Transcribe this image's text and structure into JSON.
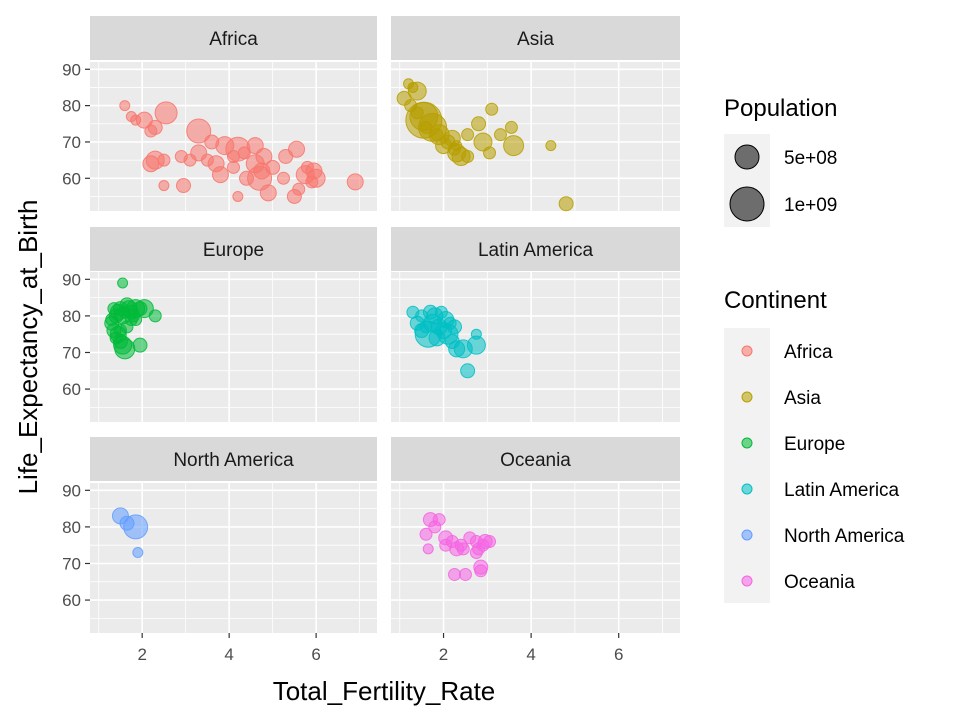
{
  "chart_data": {
    "type": "scatter",
    "xlabel": "Total_Fertility_Rate",
    "ylabel": "Life_Expectancy_at_Birth",
    "xlim": [
      0.8,
      7.4
    ],
    "ylim": [
      51,
      92
    ],
    "x_ticks": [
      2,
      4,
      6
    ],
    "y_ticks": [
      60,
      70,
      80,
      90
    ],
    "x_tick_labels": [
      "2",
      "4",
      "6"
    ],
    "y_tick_labels": [
      "60",
      "70",
      "80",
      "90"
    ],
    "grid": true,
    "facets": [
      "Africa",
      "Asia",
      "Europe",
      "Latin America",
      "North America",
      "Oceania"
    ],
    "size_legend": {
      "title": "Population",
      "entries": [
        {
          "label": "5e+08",
          "value": 500000000
        },
        {
          "label": "1e+09",
          "value": 1000000000
        }
      ]
    },
    "color_legend": {
      "title": "Continent",
      "entries": [
        {
          "label": "Africa",
          "color": "#F8766D"
        },
        {
          "label": "Asia",
          "color": "#B79F00"
        },
        {
          "label": "Europe",
          "color": "#00BA38"
        },
        {
          "label": "Latin America",
          "color": "#00BFC4"
        },
        {
          "label": "North America",
          "color": "#619CFF"
        },
        {
          "label": "Oceania",
          "color": "#F564E3"
        }
      ]
    },
    "series": [
      {
        "name": "Africa",
        "color": "#F8766D",
        "points": [
          [
            1.6,
            80,
            5
          ],
          [
            1.75,
            77,
            5
          ],
          [
            1.85,
            76,
            5
          ],
          [
            2.05,
            76,
            8
          ],
          [
            2.2,
            73,
            6
          ],
          [
            2.3,
            74,
            7
          ],
          [
            2.55,
            78,
            11
          ],
          [
            2.3,
            65,
            9
          ],
          [
            2.2,
            64,
            8
          ],
          [
            2.5,
            65,
            6
          ],
          [
            2.5,
            58,
            5
          ],
          [
            2.95,
            58,
            7
          ],
          [
            2.9,
            66,
            6
          ],
          [
            3.1,
            65,
            6
          ],
          [
            3.3,
            73,
            12
          ],
          [
            3.3,
            67,
            8
          ],
          [
            3.6,
            70,
            7
          ],
          [
            3.5,
            65,
            6
          ],
          [
            3.7,
            64,
            8
          ],
          [
            3.8,
            61,
            8
          ],
          [
            3.9,
            69,
            9
          ],
          [
            4.1,
            66,
            6
          ],
          [
            4.1,
            63,
            6
          ],
          [
            4.2,
            68,
            12
          ],
          [
            4.35,
            67,
            6
          ],
          [
            4.4,
            60,
            7
          ],
          [
            4.2,
            55,
            5
          ],
          [
            4.6,
            69,
            8
          ],
          [
            4.6,
            64,
            9
          ],
          [
            4.7,
            60,
            12
          ],
          [
            4.75,
            62,
            8
          ],
          [
            4.8,
            66,
            8
          ],
          [
            4.9,
            56,
            8
          ],
          [
            5.0,
            63,
            7
          ],
          [
            5.3,
            66,
            7
          ],
          [
            5.25,
            60,
            6
          ],
          [
            5.55,
            68,
            8
          ],
          [
            5.5,
            55,
            7
          ],
          [
            5.6,
            57,
            6
          ],
          [
            5.75,
            61,
            9
          ],
          [
            5.8,
            63,
            6
          ],
          [
            5.9,
            59,
            6
          ],
          [
            5.95,
            62,
            8
          ],
          [
            6.0,
            60,
            9
          ],
          [
            6.9,
            59,
            8
          ]
        ]
      },
      {
        "name": "Asia",
        "color": "#B79F00",
        "points": [
          [
            1.1,
            82,
            7
          ],
          [
            1.2,
            86,
            5
          ],
          [
            1.3,
            85,
            5
          ],
          [
            1.4,
            84,
            9
          ],
          [
            1.25,
            80,
            6
          ],
          [
            1.55,
            77,
            14
          ],
          [
            1.55,
            76,
            18
          ],
          [
            1.6,
            74,
            6
          ],
          [
            1.75,
            74,
            14
          ],
          [
            1.85,
            72,
            6
          ],
          [
            1.9,
            72,
            10
          ],
          [
            2.0,
            69,
            8
          ],
          [
            2.1,
            70,
            7
          ],
          [
            2.2,
            71,
            8
          ],
          [
            2.3,
            67,
            9
          ],
          [
            2.25,
            68,
            6
          ],
          [
            2.4,
            66,
            9
          ],
          [
            2.55,
            66,
            6
          ],
          [
            2.55,
            72,
            6
          ],
          [
            2.8,
            75,
            7
          ],
          [
            2.9,
            70,
            9
          ],
          [
            3.05,
            67,
            6
          ],
          [
            3.1,
            79,
            6
          ],
          [
            3.3,
            72,
            6
          ],
          [
            3.6,
            69,
            10
          ],
          [
            3.55,
            74,
            6
          ],
          [
            4.45,
            69,
            5
          ],
          [
            4.8,
            53,
            7
          ],
          [
            1.4,
            78,
            6
          ],
          [
            2.3,
            69,
            5
          ]
        ]
      },
      {
        "name": "Europe",
        "color": "#00BA38",
        "points": [
          [
            1.55,
            89,
            5
          ],
          [
            1.35,
            82,
            6
          ],
          [
            1.4,
            80,
            7
          ],
          [
            1.45,
            81,
            8
          ],
          [
            1.5,
            82,
            7
          ],
          [
            1.55,
            80,
            8
          ],
          [
            1.6,
            81,
            6
          ],
          [
            1.65,
            83,
            7
          ],
          [
            1.7,
            82,
            8
          ],
          [
            1.75,
            81,
            7
          ],
          [
            1.8,
            80,
            6
          ],
          [
            1.85,
            82,
            9
          ],
          [
            1.95,
            82,
            7
          ],
          [
            2.05,
            82,
            9
          ],
          [
            1.3,
            78,
            7
          ],
          [
            1.35,
            76,
            7
          ],
          [
            1.4,
            74,
            6
          ],
          [
            1.45,
            75,
            8
          ],
          [
            1.5,
            73,
            7
          ],
          [
            1.55,
            72,
            9
          ],
          [
            1.6,
            71,
            10
          ],
          [
            1.65,
            77,
            6
          ],
          [
            1.75,
            79,
            6
          ],
          [
            1.85,
            79,
            6
          ],
          [
            1.95,
            72,
            7
          ],
          [
            2.3,
            80,
            6
          ],
          [
            1.3,
            79,
            6
          ],
          [
            1.5,
            76,
            6
          ]
        ]
      },
      {
        "name": "Latin America",
        "color": "#00BFC4",
        "points": [
          [
            1.3,
            81,
            6
          ],
          [
            1.4,
            78,
            7
          ],
          [
            1.5,
            76,
            7
          ],
          [
            1.6,
            77,
            6
          ],
          [
            1.7,
            81,
            7
          ],
          [
            1.75,
            78,
            9
          ],
          [
            1.8,
            80,
            8
          ],
          [
            1.65,
            75,
            13
          ],
          [
            1.85,
            74,
            8
          ],
          [
            1.9,
            77,
            8
          ],
          [
            2.0,
            76,
            8
          ],
          [
            2.05,
            79,
            8
          ],
          [
            2.15,
            78,
            6
          ],
          [
            2.1,
            75,
            10
          ],
          [
            2.2,
            73,
            7
          ],
          [
            2.25,
            77,
            7
          ],
          [
            2.3,
            71,
            8
          ],
          [
            2.45,
            71,
            9
          ],
          [
            2.55,
            65,
            7
          ],
          [
            2.75,
            72,
            9
          ],
          [
            2.75,
            75,
            5
          ],
          [
            1.5,
            80,
            6
          ],
          [
            1.95,
            81,
            6
          ]
        ]
      },
      {
        "name": "North America",
        "color": "#619CFF",
        "points": [
          [
            1.5,
            83,
            8
          ],
          [
            1.65,
            81,
            7
          ],
          [
            1.85,
            80,
            12
          ],
          [
            1.9,
            73,
            5
          ]
        ]
      },
      {
        "name": "Oceania",
        "color": "#F564E3",
        "points": [
          [
            1.7,
            82,
            7
          ],
          [
            1.8,
            80,
            6
          ],
          [
            1.9,
            82,
            6
          ],
          [
            1.6,
            78,
            6
          ],
          [
            1.65,
            74,
            5
          ],
          [
            2.05,
            77,
            7
          ],
          [
            2.05,
            75,
            6
          ],
          [
            2.2,
            76,
            6
          ],
          [
            2.3,
            74,
            7
          ],
          [
            2.45,
            74,
            6
          ],
          [
            2.4,
            75,
            6
          ],
          [
            2.25,
            67,
            6
          ],
          [
            2.5,
            67,
            6
          ],
          [
            2.6,
            77,
            6
          ],
          [
            2.75,
            76,
            6
          ],
          [
            2.75,
            73,
            6
          ],
          [
            2.8,
            74,
            6
          ],
          [
            2.9,
            75,
            6
          ],
          [
            2.95,
            76,
            7
          ],
          [
            2.85,
            69,
            7
          ],
          [
            2.85,
            68,
            6
          ],
          [
            3.05,
            76,
            6
          ]
        ]
      }
    ]
  }
}
